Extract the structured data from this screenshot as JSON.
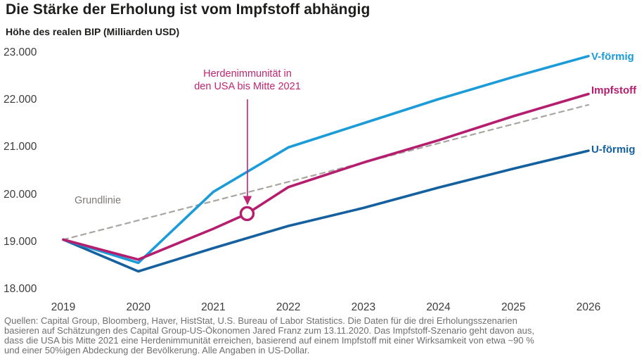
{
  "colors": {
    "title": "#1d1d1b",
    "tick": "#3c3c3c",
    "source": "#6f6f6f",
    "baseline_label": "#7c7975"
  },
  "chart_data": {
    "type": "line",
    "title": "Die Stärke der Erholung ist vom Impfstoff abhängig",
    "ylabel": "Höhe des realen BIP (Milliarden USD)",
    "xlabel": "",
    "grid": false,
    "legend_position": "right-at-line-ends",
    "x_range": [
      2019,
      2026
    ],
    "ylim": [
      18000,
      23000
    ],
    "x_ticks": [
      2019,
      2020,
      2021,
      2022,
      2023,
      2024,
      2025,
      2026
    ],
    "y_ticks": [
      23000,
      22000,
      21000,
      20000,
      19000,
      18000
    ],
    "y_tick_labels": [
      "23.000",
      "22.000",
      "21.000",
      "20.000",
      "19.000",
      "18.000"
    ],
    "series": [
      {
        "name": "V-förmig",
        "color": "#1b9cd9",
        "dash": false,
        "points": [
          [
            2019,
            19050
          ],
          [
            2020,
            18560
          ],
          [
            2021,
            20060
          ],
          [
            2022,
            21000
          ],
          [
            2023,
            21510
          ],
          [
            2024,
            22020
          ],
          [
            2025,
            22490
          ],
          [
            2026,
            22930
          ]
        ]
      },
      {
        "name": "Impfstoff",
        "color": "#b51e6e",
        "dash": false,
        "points": [
          [
            2019,
            19050
          ],
          [
            2020,
            18630
          ],
          [
            2021,
            19280
          ],
          [
            2021.45,
            19600
          ],
          [
            2022,
            20160
          ],
          [
            2023,
            20680
          ],
          [
            2024,
            21150
          ],
          [
            2025,
            21660
          ],
          [
            2026,
            22130
          ]
        ]
      },
      {
        "name": "U-förmig",
        "color": "#15609f",
        "dash": false,
        "points": [
          [
            2019,
            19050
          ],
          [
            2020,
            18380
          ],
          [
            2021,
            18870
          ],
          [
            2022,
            19340
          ],
          [
            2023,
            19720
          ],
          [
            2024,
            20150
          ],
          [
            2025,
            20550
          ],
          [
            2026,
            20930
          ]
        ]
      },
      {
        "name": "Grundlinie",
        "color": "#a9a5a0",
        "dash": true,
        "points": [
          [
            2019,
            19050
          ],
          [
            2026,
            21900
          ]
        ]
      }
    ],
    "annotation": {
      "text": "Herdenimmunität in den USA bis Mitte 2021",
      "lines": [
        "Herdenimmunität in",
        "den USA bis Mitte 2021"
      ],
      "color": "#be2572",
      "marker_series": "Impfstoff",
      "marker_x": 2021.45,
      "marker_y": 19600
    }
  },
  "source_lines": [
    "Quellen: Capital Group, Bloomberg, Haver, HistStat, U.S. Bureau of Labor Statistics. Die Daten für die drei Erholungsszenarien",
    "basieren auf Schätzungen des Capital Group-US-Ökonomen Jared Franz zum 13.11.2020. Das Impfstoff-Szenario geht davon aus,",
    "dass die USA bis Mitte 2021 eine Herdenimmunität erreichen, basierend auf einem Impfstoff mit einer Wirksamkeit von etwa ~90 %",
    "und einer 50%igen Abdeckung der Bevölkerung. Alle Angaben in US-Dollar."
  ]
}
